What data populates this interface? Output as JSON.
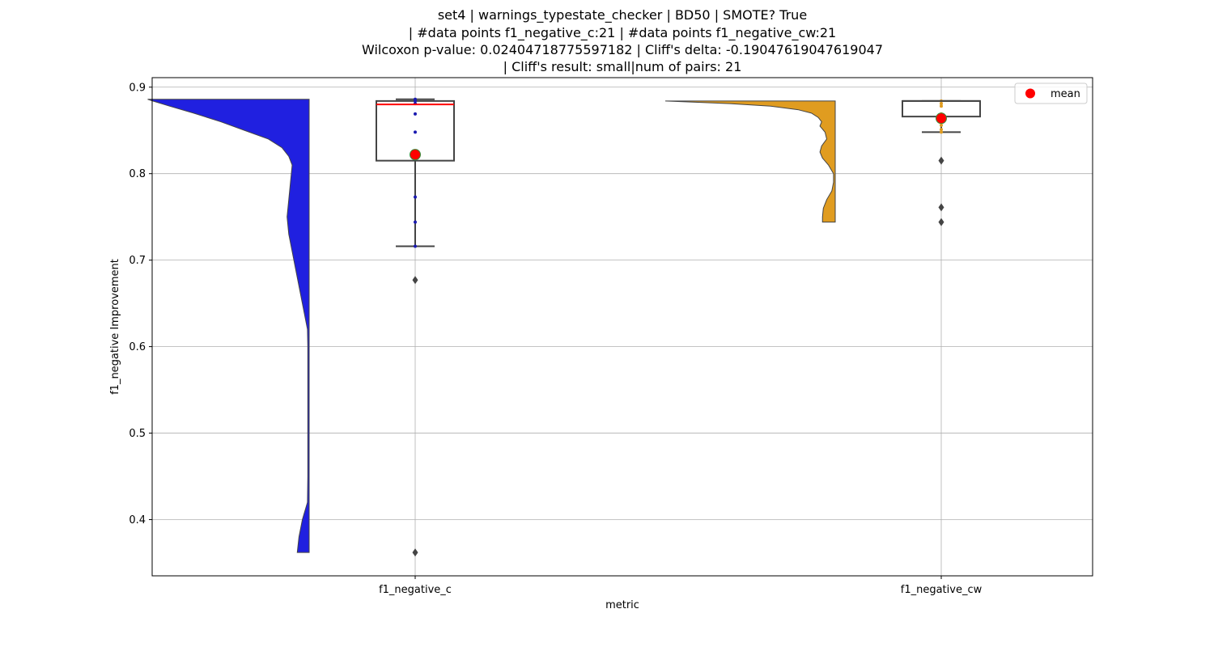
{
  "chart_data": {
    "type": "violin-box",
    "title_lines": [
      "set4 | warnings_typestate_checker | BD50 | SMOTE? True",
      "| #data points f1_negative_c:21 | #data points f1_negative_cw:21",
      "Wilcoxon p-value: 0.02404718775597182 | Cliff's delta: -0.19047619047619047",
      "| Cliff's result: small|num of pairs: 21"
    ],
    "xlabel": "metric",
    "ylabel": "f1_negative Improvement",
    "categories": [
      "f1_negative_c",
      "f1_negative_cw"
    ],
    "ylim": [
      0.335,
      0.911
    ],
    "yticks": [
      0.4,
      0.5,
      0.6,
      0.7,
      0.8,
      0.9
    ],
    "ytick_labels": [
      "0.4",
      "0.5",
      "0.6",
      "0.7",
      "0.8",
      "0.9"
    ],
    "grid": true,
    "legend": {
      "placement": "top-right",
      "label": "mean"
    },
    "colors": {
      "c_violin": "#2020e0",
      "cw_violin": "#e09c20",
      "mean_marker": "#ff0000",
      "mean_edge": "#3a8a3a",
      "median_c": "#ff0000",
      "box_edge": "#444444",
      "grid": "#b0b0b0"
    },
    "series": [
      {
        "category": "f1_negative_c",
        "box": {
          "q1": 0.815,
          "median": 0.88,
          "q3": 0.884,
          "whisker_low": 0.716,
          "whisker_high": 0.886
        },
        "mean": 0.822,
        "outliers": [
          0.677,
          0.362
        ],
        "points": [
          0.886,
          0.884,
          0.881,
          0.869,
          0.848,
          0.773,
          0.744,
          0.716
        ],
        "point_color": "#1a1ab0",
        "violin_profile": [
          [
            0.886,
            0.95
          ],
          [
            0.884,
            0.92
          ],
          [
            0.878,
            0.82
          ],
          [
            0.87,
            0.68
          ],
          [
            0.86,
            0.52
          ],
          [
            0.85,
            0.38
          ],
          [
            0.84,
            0.24
          ],
          [
            0.83,
            0.16
          ],
          [
            0.82,
            0.12
          ],
          [
            0.81,
            0.1
          ],
          [
            0.79,
            0.11
          ],
          [
            0.77,
            0.12
          ],
          [
            0.75,
            0.13
          ],
          [
            0.73,
            0.12
          ],
          [
            0.71,
            0.1
          ],
          [
            0.69,
            0.08
          ],
          [
            0.67,
            0.06
          ],
          [
            0.65,
            0.04
          ],
          [
            0.63,
            0.02
          ],
          [
            0.62,
            0.01
          ],
          [
            0.6,
            0.008
          ],
          [
            0.55,
            0.008
          ],
          [
            0.5,
            0.008
          ],
          [
            0.45,
            0.008
          ],
          [
            0.42,
            0.01
          ],
          [
            0.4,
            0.04
          ],
          [
            0.38,
            0.06
          ],
          [
            0.362,
            0.07
          ]
        ]
      },
      {
        "category": "f1_negative_cw",
        "box": {
          "q1": 0.866,
          "median": 0.884,
          "q3": 0.884,
          "whisker_low": 0.848,
          "whisker_high": 0.884
        },
        "mean": 0.864,
        "outliers": [
          0.815,
          0.761,
          0.744
        ],
        "points": [
          0.884,
          0.881,
          0.878,
          0.869,
          0.861,
          0.856,
          0.851,
          0.848
        ],
        "point_color": "#e09c20",
        "violin_profile": [
          [
            0.884,
            1.0
          ],
          [
            0.881,
            0.62
          ],
          [
            0.878,
            0.38
          ],
          [
            0.874,
            0.22
          ],
          [
            0.87,
            0.14
          ],
          [
            0.865,
            0.1
          ],
          [
            0.86,
            0.08
          ],
          [
            0.855,
            0.09
          ],
          [
            0.848,
            0.06
          ],
          [
            0.84,
            0.05
          ],
          [
            0.832,
            0.08
          ],
          [
            0.825,
            0.09
          ],
          [
            0.818,
            0.075
          ],
          [
            0.81,
            0.04
          ],
          [
            0.8,
            0.01
          ],
          [
            0.79,
            0.01
          ],
          [
            0.78,
            0.02
          ],
          [
            0.77,
            0.05
          ],
          [
            0.76,
            0.07
          ],
          [
            0.75,
            0.075
          ],
          [
            0.744,
            0.075
          ]
        ]
      }
    ]
  }
}
